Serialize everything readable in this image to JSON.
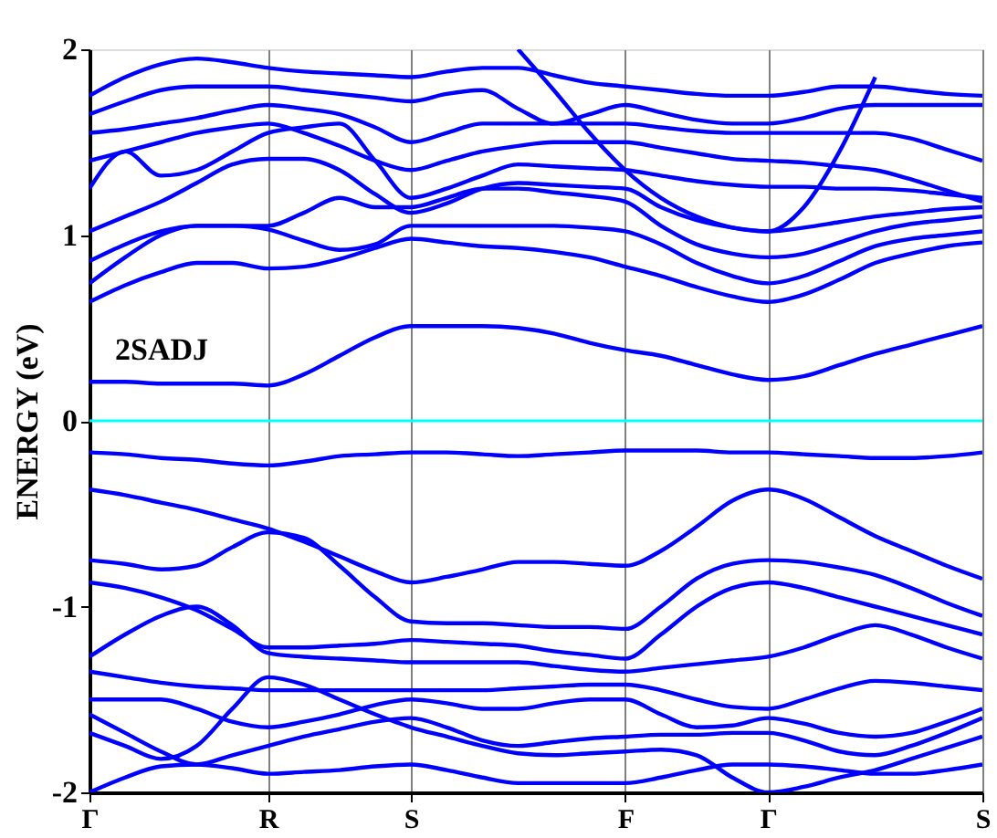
{
  "chart_data": {
    "type": "line",
    "ylabel": "ENERGY (eV)",
    "annotations": [
      "2SADJ"
    ],
    "categories": [
      "Γ",
      null,
      null,
      null,
      null,
      "R",
      null,
      null,
      null,
      "S",
      null,
      null,
      null,
      null,
      null,
      "F",
      null,
      null,
      null,
      "Γ",
      null,
      null,
      null,
      null,
      null,
      "S"
    ],
    "ylim": [
      -2,
      2
    ],
    "yticks": [
      {
        "value": -2,
        "label": "-2"
      },
      {
        "value": -1,
        "label": "-1"
      },
      {
        "value": 0,
        "label": "0"
      },
      {
        "value": 1,
        "label": "1"
      },
      {
        "value": 2,
        "label": "2"
      }
    ],
    "grid": "x",
    "legend": false,
    "marker": "none",
    "line_style": "solid",
    "ref_lines": [
      {
        "axis": "y",
        "value": 0,
        "color": "#00ffff"
      }
    ],
    "series": [
      {
        "color": "#0000ff",
        "values": [
          0.21,
          0.21,
          0.2,
          0.2,
          0.2,
          0.19,
          0.25,
          0.35,
          0.45,
          0.51,
          0.51,
          0.51,
          0.5,
          0.47,
          0.42,
          0.38,
          0.35,
          0.3,
          0.25,
          0.22,
          0.24,
          0.3,
          0.36,
          0.41,
          0.46,
          0.51
        ]
      },
      {
        "color": "#0000ff",
        "values": [
          0.64,
          0.73,
          0.8,
          0.85,
          0.85,
          0.82,
          0.83,
          0.87,
          0.93,
          0.98,
          0.96,
          0.94,
          0.93,
          0.91,
          0.88,
          0.83,
          0.78,
          0.72,
          0.67,
          0.64,
          0.68,
          0.76,
          0.85,
          0.9,
          0.94,
          0.96
        ]
      },
      {
        "color": "#0000ff",
        "values": [
          0.74,
          0.88,
          1.0,
          1.05,
          1.05,
          1.03,
          0.97,
          0.92,
          0.95,
          1.05,
          1.05,
          1.05,
          1.05,
          1.05,
          1.04,
          1.02,
          0.95,
          0.85,
          0.78,
          0.74,
          0.78,
          0.86,
          0.94,
          0.98,
          1.0,
          1.02
        ]
      },
      {
        "color": "#0000ff",
        "values": [
          0.86,
          0.95,
          1.02,
          1.05,
          1.05,
          1.05,
          1.12,
          1.2,
          1.15,
          1.15,
          1.2,
          1.25,
          1.25,
          1.23,
          1.21,
          1.18,
          1.05,
          0.95,
          0.9,
          0.88,
          0.9,
          0.96,
          1.02,
          1.06,
          1.08,
          1.1
        ]
      },
      {
        "color": "#0000ff",
        "values": [
          1.02,
          1.1,
          1.18,
          1.28,
          1.38,
          1.41,
          1.41,
          1.35,
          1.22,
          1.12,
          1.17,
          1.25,
          1.28,
          1.27,
          1.26,
          1.25,
          1.15,
          1.08,
          1.04,
          1.02,
          1.04,
          1.07,
          1.1,
          1.12,
          1.14,
          1.15
        ]
      },
      {
        "color": "#0000ff",
        "values": [
          1.25,
          1.45,
          1.32,
          1.35,
          1.45,
          1.55,
          1.58,
          1.6,
          1.4,
          1.2,
          1.25,
          1.32,
          1.38,
          1.37,
          1.36,
          1.35,
          1.32,
          1.29,
          1.27,
          1.26,
          1.26,
          1.25,
          1.25,
          1.24,
          1.22,
          1.2
        ]
      },
      {
        "color": "#0000ff",
        "values": [
          1.4,
          1.45,
          1.5,
          1.55,
          1.58,
          1.6,
          1.55,
          1.48,
          1.4,
          1.35,
          1.4,
          1.45,
          1.48,
          1.5,
          1.5,
          1.5,
          1.47,
          1.44,
          1.41,
          1.4,
          1.39,
          1.37,
          1.35,
          1.3,
          1.24,
          1.18
        ]
      },
      {
        "color": "#0000ff",
        "values": [
          1.55,
          1.57,
          1.6,
          1.63,
          1.67,
          1.7,
          1.68,
          1.65,
          1.58,
          1.5,
          1.55,
          1.6,
          1.6,
          1.6,
          1.6,
          1.6,
          1.58,
          1.56,
          1.55,
          1.55,
          1.55,
          1.55,
          1.55,
          1.52,
          1.46,
          1.4
        ]
      },
      {
        "color": "#0000ff",
        "values": [
          1.65,
          1.72,
          1.78,
          1.8,
          1.8,
          1.8,
          1.78,
          1.76,
          1.74,
          1.72,
          1.76,
          1.78,
          1.68,
          1.6,
          1.65,
          1.7,
          1.66,
          1.62,
          1.6,
          1.6,
          1.63,
          1.68,
          1.7,
          1.7,
          1.7,
          1.7
        ]
      },
      {
        "color": "#0000ff",
        "values": [
          1.75,
          1.85,
          1.92,
          1.95,
          1.93,
          1.9,
          1.88,
          1.87,
          1.86,
          1.85,
          1.88,
          1.9,
          1.9,
          1.86,
          1.82,
          1.8,
          1.78,
          1.76,
          1.75,
          1.75,
          1.77,
          1.8,
          1.8,
          1.78,
          1.76,
          1.75
        ]
      },
      {
        "color": "#0000ff",
        "values": [
          null,
          null,
          null,
          null,
          null,
          null,
          null,
          null,
          null,
          null,
          null,
          null,
          2.0,
          1.78,
          1.55,
          1.35,
          1.2,
          1.1,
          1.04,
          1.02,
          1.15,
          1.45,
          1.85,
          null,
          null,
          null
        ]
      },
      {
        "color": "#0000ff",
        "values": [
          -0.17,
          -0.18,
          -0.2,
          -0.21,
          -0.23,
          -0.24,
          -0.22,
          -0.19,
          -0.18,
          -0.17,
          -0.17,
          -0.18,
          -0.19,
          -0.18,
          -0.17,
          -0.16,
          -0.16,
          -0.16,
          -0.17,
          -0.17,
          -0.18,
          -0.19,
          -0.2,
          -0.2,
          -0.19,
          -0.17
        ]
      },
      {
        "color": "#0000ff",
        "values": [
          -0.37,
          -0.4,
          -0.44,
          -0.48,
          -0.53,
          -0.58,
          -0.65,
          -0.73,
          -0.81,
          -0.87,
          -0.84,
          -0.8,
          -0.76,
          -0.76,
          -0.77,
          -0.78,
          -0.7,
          -0.57,
          -0.43,
          -0.37,
          -0.42,
          -0.52,
          -0.62,
          -0.7,
          -0.78,
          -0.85
        ]
      },
      {
        "color": "#0000ff",
        "values": [
          -0.75,
          -0.77,
          -0.8,
          -0.78,
          -0.68,
          -0.6,
          -0.63,
          -0.78,
          -0.95,
          -1.08,
          -1.09,
          -1.09,
          -1.1,
          -1.11,
          -1.11,
          -1.12,
          -1.0,
          -0.85,
          -0.77,
          -0.75,
          -0.76,
          -0.79,
          -0.83,
          -0.9,
          -0.98,
          -1.05
        ]
      },
      {
        "color": "#0000ff",
        "values": [
          -0.87,
          -0.9,
          -0.95,
          -1.02,
          -1.12,
          -1.22,
          -1.22,
          -1.21,
          -1.2,
          -1.18,
          -1.19,
          -1.2,
          -1.21,
          -1.24,
          -1.26,
          -1.28,
          -1.15,
          -1.0,
          -0.9,
          -0.87,
          -0.9,
          -0.95,
          -1.0,
          -1.05,
          -1.1,
          -1.15
        ]
      },
      {
        "color": "#0000ff",
        "values": [
          -1.27,
          -1.15,
          -1.05,
          -1.0,
          -1.1,
          -1.25,
          -1.27,
          -1.28,
          -1.29,
          -1.3,
          -1.3,
          -1.3,
          -1.3,
          -1.32,
          -1.34,
          -1.35,
          -1.33,
          -1.31,
          -1.29,
          -1.27,
          -1.22,
          -1.15,
          -1.1,
          -1.15,
          -1.22,
          -1.28
        ]
      },
      {
        "color": "#0000ff",
        "values": [
          -1.35,
          -1.38,
          -1.41,
          -1.43,
          -1.44,
          -1.45,
          -1.45,
          -1.45,
          -1.45,
          -1.45,
          -1.45,
          -1.45,
          -1.44,
          -1.43,
          -1.42,
          -1.42,
          -1.45,
          -1.5,
          -1.54,
          -1.55,
          -1.5,
          -1.44,
          -1.4,
          -1.41,
          -1.43,
          -1.45
        ]
      },
      {
        "color": "#0000ff",
        "values": [
          -1.5,
          -1.5,
          -1.5,
          -1.55,
          -1.62,
          -1.65,
          -1.62,
          -1.58,
          -1.53,
          -1.5,
          -1.52,
          -1.55,
          -1.55,
          -1.52,
          -1.5,
          -1.5,
          -1.58,
          -1.65,
          -1.64,
          -1.6,
          -1.63,
          -1.68,
          -1.7,
          -1.68,
          -1.62,
          -1.55
        ]
      },
      {
        "color": "#0000ff",
        "values": [
          -1.58,
          -1.68,
          -1.78,
          -1.85,
          -1.8,
          -1.75,
          -1.7,
          -1.66,
          -1.62,
          -1.6,
          -1.65,
          -1.72,
          -1.75,
          -1.73,
          -1.71,
          -1.7,
          -1.69,
          -1.69,
          -1.68,
          -1.68,
          -1.72,
          -1.78,
          -1.8,
          -1.75,
          -1.68,
          -1.6
        ]
      },
      {
        "color": "#0000ff",
        "values": [
          -1.68,
          -1.75,
          -1.82,
          -1.75,
          -1.55,
          -1.38,
          -1.42,
          -1.5,
          -1.58,
          -1.65,
          -1.7,
          -1.75,
          -1.79,
          -1.8,
          -1.79,
          -1.78,
          -1.77,
          -1.8,
          -1.92,
          -2.0,
          -1.97,
          -1.92,
          -1.88,
          -1.82,
          -1.76,
          -1.7
        ]
      },
      {
        "color": "#0000ff",
        "values": [
          -2.0,
          -1.92,
          -1.86,
          -1.85,
          -1.87,
          -1.9,
          -1.89,
          -1.88,
          -1.86,
          -1.85,
          -1.88,
          -1.92,
          -1.95,
          -1.95,
          -1.95,
          -1.95,
          -1.92,
          -1.88,
          -1.85,
          -1.85,
          -1.86,
          -1.88,
          -1.9,
          -1.9,
          -1.88,
          -1.85
        ]
      }
    ]
  }
}
